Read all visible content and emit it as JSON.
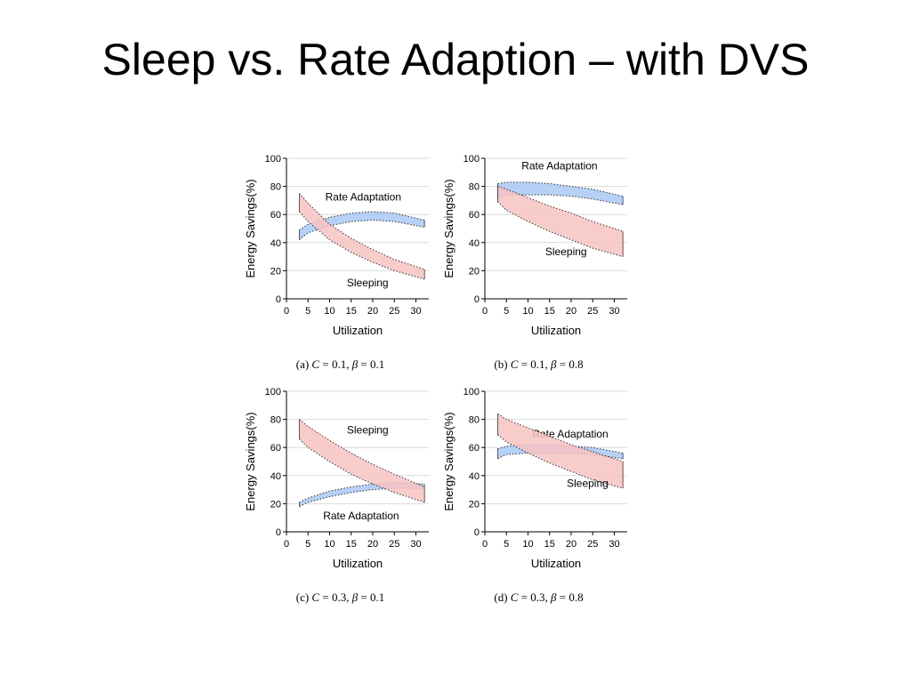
{
  "slide": {
    "title": "Sleep vs. Rate Adaption – with DVS"
  },
  "colors": {
    "rate_fill": "#a9c8f5",
    "sleep_fill": "#f8c3c3",
    "curve": "#333333",
    "grid": "#d9d9d9"
  },
  "chart_data": [
    {
      "type": "area",
      "caption": {
        "label": "(a)",
        "c": "0.1",
        "beta": "0.1"
      },
      "xlabel": "Utilization",
      "ylabel": "Energy Savings(%)",
      "xlim": [
        0,
        33
      ],
      "ylim": [
        0,
        100
      ],
      "xticks": [
        0,
        5,
        10,
        15,
        20,
        25,
        30
      ],
      "yticks": [
        0,
        20,
        40,
        60,
        80,
        100
      ],
      "x": [
        3,
        5,
        10,
        15,
        20,
        25,
        32
      ],
      "bands": [
        {
          "name": "Rate Adaptation",
          "kind": "rate",
          "upper": [
            49,
            53,
            58,
            61,
            62,
            61,
            56
          ],
          "lower": [
            42,
            47,
            52,
            55,
            56,
            55,
            51
          ],
          "label": {
            "text": "Rate Adaptation",
            "x": 9,
            "y": 70
          }
        },
        {
          "name": "Sleeping",
          "kind": "sleep",
          "upper": [
            75,
            68,
            53,
            43,
            35,
            28,
            21
          ],
          "lower": [
            62,
            55,
            42,
            33,
            26,
            20,
            14
          ],
          "label": {
            "text": "Sleeping",
            "x": 14,
            "y": 9
          }
        }
      ]
    },
    {
      "type": "area",
      "caption": {
        "label": "(b)",
        "c": "0.1",
        "beta": "0.8"
      },
      "xlabel": "Utilization",
      "ylabel": "Energy Savings(%)",
      "xlim": [
        0,
        33
      ],
      "ylim": [
        0,
        100
      ],
      "xticks": [
        0,
        5,
        10,
        15,
        20,
        25,
        30
      ],
      "yticks": [
        0,
        20,
        40,
        60,
        80,
        100
      ],
      "x": [
        3,
        5,
        10,
        15,
        20,
        25,
        32
      ],
      "bands": [
        {
          "name": "Rate Adaptation",
          "kind": "rate",
          "upper": [
            82,
            83,
            83,
            82,
            80,
            78,
            73
          ],
          "lower": [
            72,
            74,
            74,
            74,
            73,
            71,
            67
          ],
          "label": {
            "text": "Rate Adaptation",
            "x": 8.5,
            "y": 92
          }
        },
        {
          "name": "Sleeping",
          "kind": "sleep",
          "upper": [
            80,
            78,
            72,
            66,
            61,
            55,
            48
          ],
          "lower": [
            69,
            63,
            55,
            48,
            42,
            36,
            30
          ],
          "label": {
            "text": "Sleeping",
            "x": 14,
            "y": 31
          }
        }
      ]
    },
    {
      "type": "area",
      "caption": {
        "label": "(c)",
        "c": "0.3",
        "beta": "0.1"
      },
      "xlabel": "Utilization",
      "ylabel": "Energy Savings(%)",
      "xlim": [
        0,
        33
      ],
      "ylim": [
        0,
        100
      ],
      "xticks": [
        0,
        5,
        10,
        15,
        20,
        25,
        30
      ],
      "yticks": [
        0,
        20,
        40,
        60,
        80,
        100
      ],
      "x": [
        3,
        5,
        10,
        15,
        20,
        25,
        32
      ],
      "bands": [
        {
          "name": "Rate Adaptation",
          "kind": "rate",
          "upper": [
            21,
            24,
            29,
            32,
            34,
            35,
            34
          ],
          "lower": [
            18,
            21,
            25,
            28,
            30,
            31,
            31
          ],
          "label": {
            "text": "Rate Adaptation",
            "x": 8.5,
            "y": 9
          }
        },
        {
          "name": "Sleeping",
          "kind": "sleep",
          "upper": [
            80,
            75,
            65,
            56,
            48,
            41,
            32
          ],
          "lower": [
            66,
            60,
            50,
            41,
            34,
            28,
            21
          ],
          "label": {
            "text": "Sleeping",
            "x": 14,
            "y": 70
          }
        }
      ]
    },
    {
      "type": "area",
      "caption": {
        "label": "(d)",
        "c": "0.3",
        "beta": "0.8"
      },
      "xlabel": "Utilization",
      "ylabel": "Energy Savings(%)",
      "xlim": [
        0,
        33
      ],
      "ylim": [
        0,
        100
      ],
      "xticks": [
        0,
        5,
        10,
        15,
        20,
        25,
        30
      ],
      "yticks": [
        0,
        20,
        40,
        60,
        80,
        100
      ],
      "x": [
        3,
        5,
        10,
        15,
        20,
        25,
        32
      ],
      "bands": [
        {
          "name": "Rate Adaptation",
          "kind": "rate",
          "upper": [
            59,
            61,
            62,
            62,
            61,
            60,
            56
          ],
          "lower": [
            52,
            55,
            56,
            56,
            56,
            55,
            52
          ],
          "label": {
            "text": "Rate Adaptation",
            "x": 11,
            "y": 67
          }
        },
        {
          "name": "Sleeping",
          "kind": "sleep",
          "upper": [
            84,
            80,
            74,
            68,
            62,
            57,
            50
          ],
          "lower": [
            69,
            64,
            56,
            49,
            43,
            37,
            31
          ],
          "label": {
            "text": "Sleeping",
            "x": 19,
            "y": 32
          }
        }
      ]
    }
  ]
}
